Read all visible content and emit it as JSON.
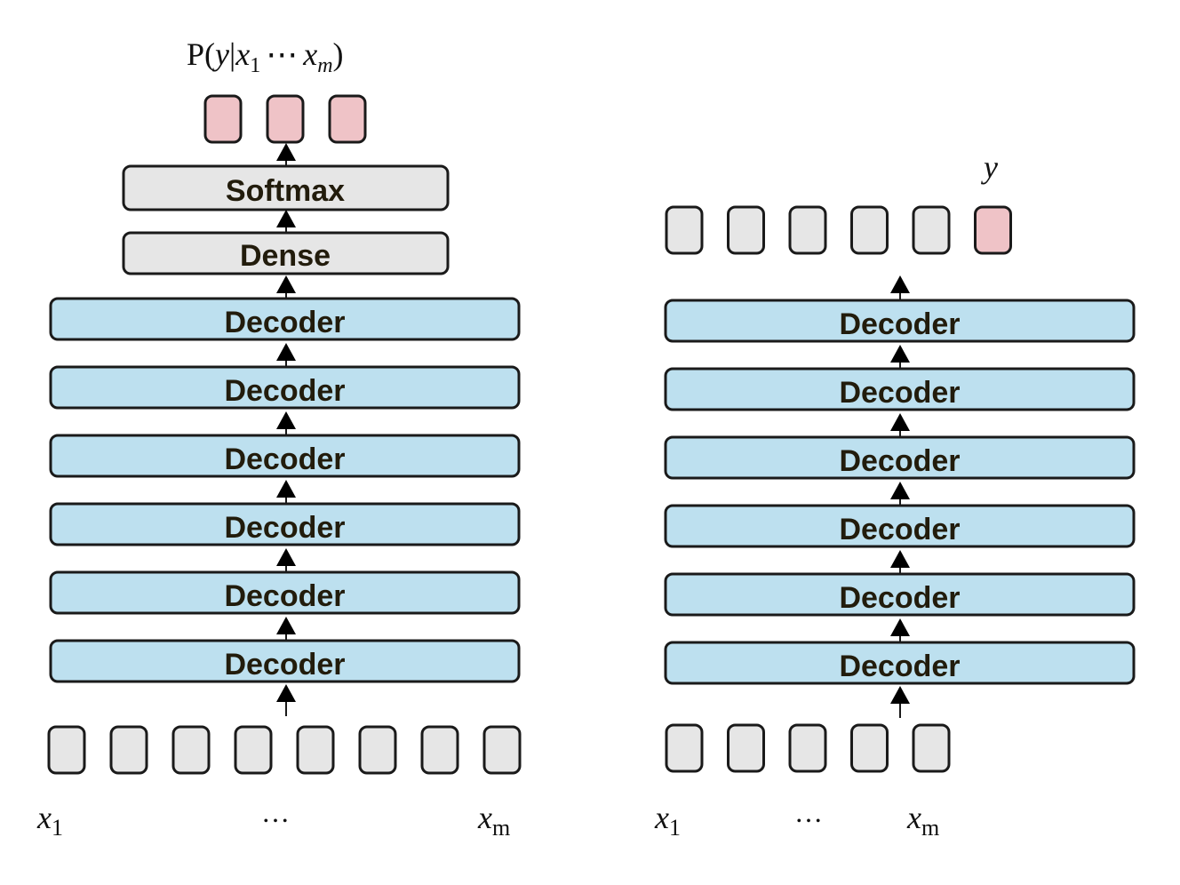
{
  "left_model": {
    "output_label": {
      "prefix": "P(",
      "y": "y",
      "bar": "|",
      "x_start": "x",
      "sub_start": "1",
      "dots": "⋯",
      "x_end": "x",
      "sub_end": "m",
      "close": ")"
    },
    "output_tokens": 3,
    "softmax_label": "Softmax",
    "dense_label": "Dense",
    "decoder_labels": [
      "Decoder",
      "Decoder",
      "Decoder",
      "Decoder",
      "Decoder",
      "Decoder"
    ],
    "input_tokens": 8,
    "input_labels": {
      "first": "x",
      "first_sub": "1",
      "dots": "…",
      "last": "x",
      "last_sub": "m"
    }
  },
  "right_model": {
    "output_label": "y",
    "output_tokens": 6,
    "decoder_labels": [
      "Decoder",
      "Decoder",
      "Decoder",
      "Decoder",
      "Decoder",
      "Decoder"
    ],
    "input_tokens": 5,
    "input_labels": {
      "first": "x",
      "first_sub": "1",
      "dots": "…",
      "last": "x",
      "last_sub": "m"
    }
  },
  "colors": {
    "decoder_fill": "#bde0ef",
    "gray_fill": "#e6e6e6",
    "pink_fill": "#efc3c7",
    "stroke": "#1a1a1a"
  }
}
